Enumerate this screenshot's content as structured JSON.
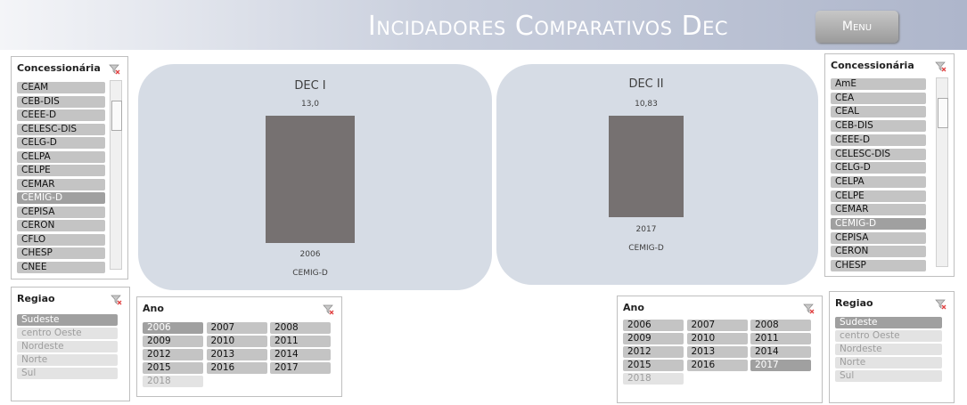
{
  "header": {
    "title": "Incidadores Comparativos Dec",
    "menu": "Menu"
  },
  "charts": [
    {
      "type": "bar",
      "title": "DEC I",
      "categories": [
        "2006"
      ],
      "series": [
        {
          "name": "CEMIG-D",
          "color": "#767171",
          "values": [
            13.0
          ],
          "value_labels": [
            "13,0"
          ]
        }
      ]
    },
    {
      "type": "bar",
      "title": "DEC II",
      "categories": [
        "2017"
      ],
      "series": [
        {
          "name": "CEMIG-D",
          "color": "#767171",
          "values": [
            10.83
          ],
          "value_labels": [
            "10,83"
          ]
        }
      ]
    }
  ],
  "slicers": [
    {
      "title": "Concessionária",
      "items": [
        "CEAM",
        "CEB-DIS",
        "CEEE-D",
        "CELESC-DIS",
        "CELG-D",
        "CELPA",
        "CELPE",
        "CEMAR",
        "CEMIG-D",
        "CEPISA",
        "CERON",
        "CFLO",
        "CHESP",
        "CNEE"
      ],
      "selected": [
        8
      ],
      "faded": [],
      "columns": 1,
      "scrollbar": true
    },
    {
      "title": "Concessionária",
      "items": [
        "AmE",
        "CEA",
        "CEAL",
        "CEB-DIS",
        "CEEE-D",
        "CELESC-DIS",
        "CELG-D",
        "CELPA",
        "CELPE",
        "CEMAR",
        "CEMIG-D",
        "CEPISA",
        "CERON",
        "CHESP"
      ],
      "selected": [
        10
      ],
      "faded": [],
      "columns": 1,
      "scrollbar": true
    },
    {
      "title": "Regiao",
      "items": [
        "Sudeste",
        "centro Oeste",
        "Nordeste",
        "Norte",
        "Sul"
      ],
      "selected": [
        0
      ],
      "faded": [
        1,
        2,
        3,
        4
      ],
      "columns": 1,
      "scrollbar": false
    },
    {
      "title": "Ano",
      "items": [
        "2006",
        "2007",
        "2008",
        "2009",
        "2010",
        "2011",
        "2012",
        "2013",
        "2014",
        "2015",
        "2016",
        "2017",
        "2018"
      ],
      "selected": [
        0
      ],
      "faded": [
        12
      ],
      "columns": 3,
      "scrollbar": false
    },
    {
      "title": "Ano",
      "items": [
        "2006",
        "2007",
        "2008",
        "2009",
        "2010",
        "2011",
        "2012",
        "2013",
        "2014",
        "2015",
        "2016",
        "2017",
        "2018"
      ],
      "selected": [
        11
      ],
      "faded": [
        12
      ],
      "columns": 3,
      "scrollbar": false
    },
    {
      "title": "Regiao",
      "items": [
        "Sudeste",
        "centro Oeste",
        "Nordeste",
        "Norte",
        "Sul"
      ],
      "selected": [
        0
      ],
      "faded": [
        1,
        2,
        3,
        4
      ],
      "columns": 1,
      "scrollbar": false
    }
  ]
}
